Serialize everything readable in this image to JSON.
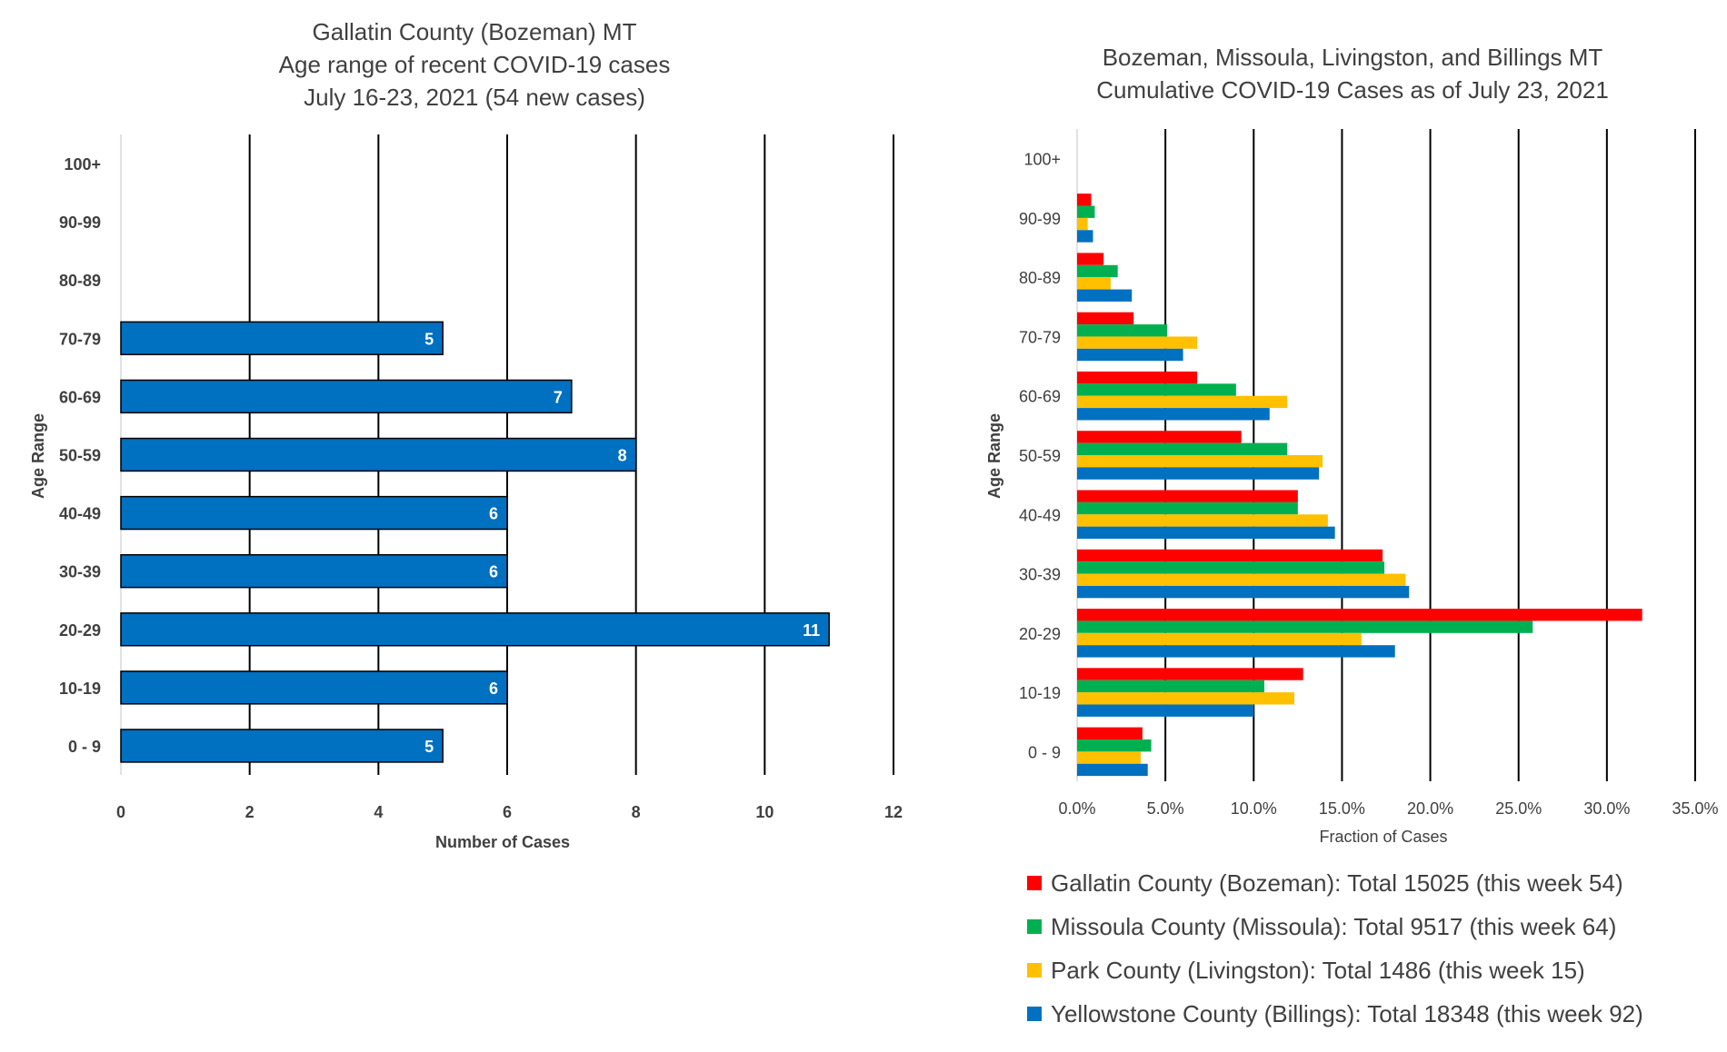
{
  "chart_data": [
    {
      "type": "bar",
      "orientation": "horizontal",
      "title": [
        "Gallatin County (Bozeman) MT",
        "Age range of recent COVID-19 cases",
        "July 16-23, 2021 (54 new cases)"
      ],
      "xlabel": "Number of Cases",
      "ylabel": "Age Range",
      "categories": [
        "0 - 9",
        "10-19",
        "20-29",
        "30-39",
        "40-49",
        "50-59",
        "60-69",
        "70-79",
        "80-89",
        "90-99",
        "100+"
      ],
      "values": [
        5,
        6,
        11,
        6,
        6,
        8,
        7,
        5,
        0,
        0,
        0
      ],
      "data_labels": [
        "5",
        "6",
        "11",
        "6",
        "6",
        "8",
        "7",
        "5",
        "",
        "",
        ""
      ],
      "xlim": [
        0,
        12
      ],
      "x_ticks": [
        "0",
        "2",
        "4",
        "6",
        "8",
        "10",
        "12"
      ],
      "grid": "vertical",
      "bar_color": "#0070C0"
    },
    {
      "type": "bar",
      "orientation": "horizontal",
      "title": [
        "Bozeman, Missoula, Livingston, and Billings MT",
        "Cumulative COVID-19 Cases as of July 23, 2021"
      ],
      "xlabel": "Fraction of Cases",
      "ylabel": "Age Range",
      "categories": [
        "0 - 9",
        "10-19",
        "20-29",
        "30-39",
        "40-49",
        "50-59",
        "60-69",
        "70-79",
        "80-89",
        "90-99",
        "100+"
      ],
      "xlim": [
        0,
        35
      ],
      "x_ticks": [
        "0.0%",
        "5.0%",
        "10.0%",
        "15.0%",
        "20.0%",
        "25.0%",
        "30.0%",
        "35.0%"
      ],
      "grid": "vertical",
      "legend_position": "bottom",
      "series": [
        {
          "name": "Gallatin County (Bozeman): Total 15025 (this week 54)",
          "color": "#FF0000",
          "values": [
            3.7,
            12.8,
            32.0,
            17.3,
            12.5,
            9.3,
            6.8,
            3.2,
            1.5,
            0.8,
            0.0
          ]
        },
        {
          "name": "Missoula County (Missoula): Total 9517 (this week 64)",
          "color": "#00B050",
          "values": [
            4.2,
            10.6,
            25.8,
            17.4,
            12.5,
            11.9,
            9.0,
            5.1,
            2.3,
            1.0,
            0.0
          ]
        },
        {
          "name": "Park County (Livingston): Total 1486 (this week 15)",
          "color": "#FFC000",
          "values": [
            3.6,
            12.3,
            16.1,
            18.6,
            14.2,
            13.9,
            11.9,
            6.8,
            1.9,
            0.6,
            0.0
          ]
        },
        {
          "name": "Yellowstone County (Billings): Total 18348 (this week 92)",
          "color": "#0070C0",
          "values": [
            4.0,
            10.0,
            18.0,
            18.8,
            14.6,
            13.7,
            10.9,
            6.0,
            3.1,
            0.9,
            0.0
          ]
        }
      ]
    }
  ]
}
